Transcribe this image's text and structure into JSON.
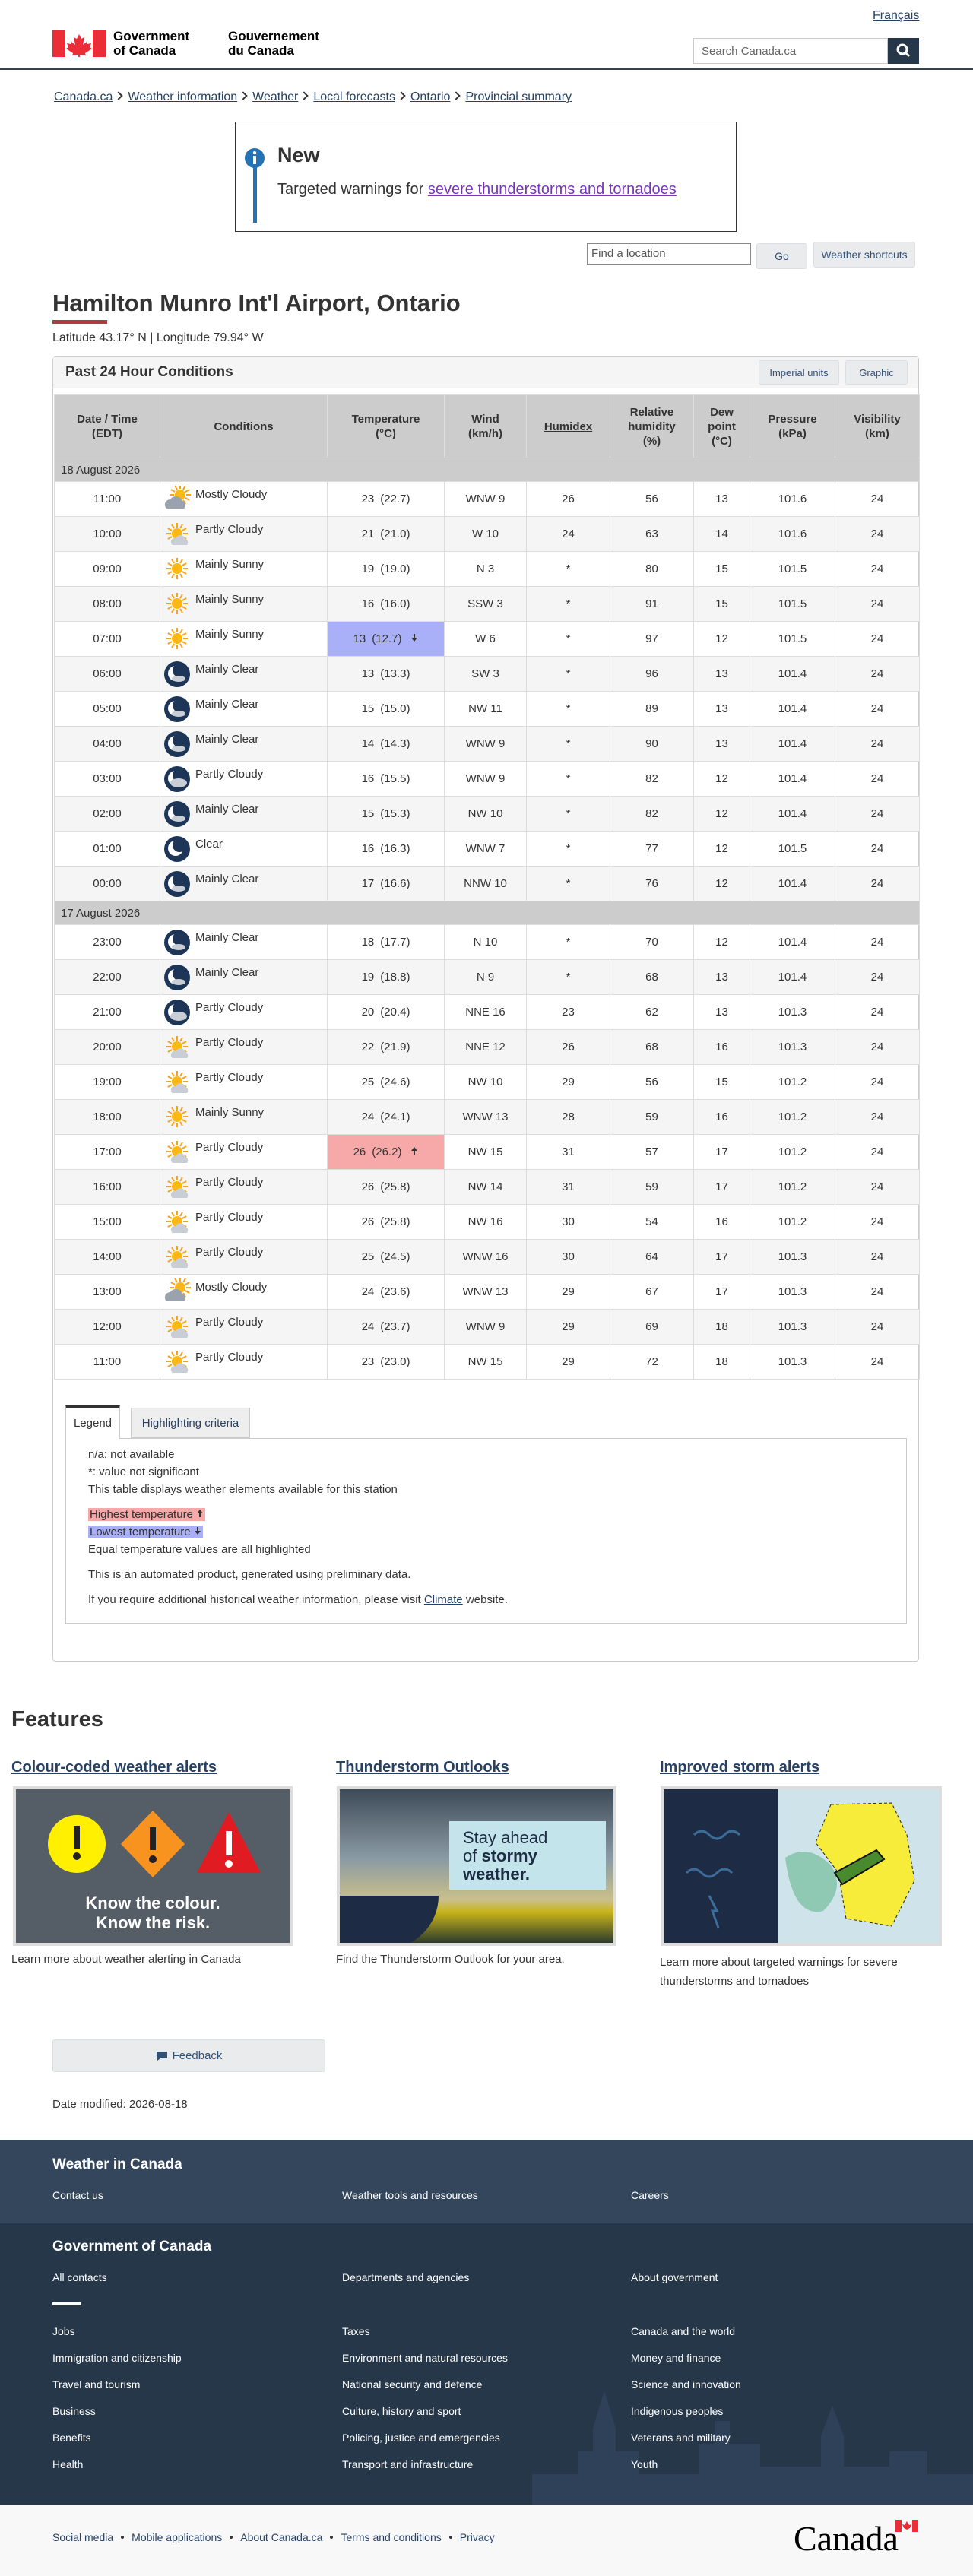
{
  "header": {
    "lang_toggle": "Français",
    "gov_en": [
      "Government",
      "of Canada"
    ],
    "gov_fr": [
      "Gouvernement",
      "du Canada"
    ],
    "search_placeholder": "Search Canada.ca"
  },
  "breadcrumb": [
    "Canada.ca",
    "Weather information",
    "Weather",
    "Local forecasts",
    "Ontario",
    "Provincial summary"
  ],
  "alert": {
    "title": "New",
    "text": "Targeted warnings for",
    "link": "severe thunderstorms and tornadoes"
  },
  "location_search": {
    "placeholder": "Find a location",
    "go": "Go",
    "shortcuts": "Weather shortcuts"
  },
  "station": {
    "title": "Hamilton Munro Int'l Airport, Ontario",
    "coordinates": "Latitude 43.17° N | Longitude 79.94° W"
  },
  "panel": {
    "title": "Past 24 Hour Conditions",
    "buttons": [
      "Imperial units",
      "Graphic"
    ]
  },
  "table": {
    "columns": [
      [
        "Date / Time",
        "(EDT)"
      ],
      [
        "Conditions"
      ],
      [
        "Temperature",
        "(°C)"
      ],
      [
        "Wind",
        "(km/h)"
      ],
      [
        "Humidex"
      ],
      [
        "Relative",
        "humidity",
        "(%)"
      ],
      [
        "Dew",
        "point",
        "(°C)"
      ],
      [
        "Pressure",
        "(kPa)"
      ],
      [
        "Visibility",
        "(km)"
      ]
    ],
    "groups": [
      {
        "date": "18 August 2026",
        "rows": [
          {
            "cells": [
              "11:00",
              "Mostly Cloudy",
              "23",
              "(22.7)",
              "WNW 9",
              "26",
              "56",
              "13",
              "101.6",
              "24"
            ]
          },
          {
            "cells": [
              "10:00",
              "Partly Cloudy",
              "21",
              "(21.0)",
              "W 10",
              "24",
              "63",
              "14",
              "101.6",
              "24"
            ]
          },
          {
            "cells": [
              "09:00",
              "Mainly Sunny",
              "19",
              "(19.0)",
              "N 3",
              "*",
              "80",
              "15",
              "101.5",
              "24"
            ]
          },
          {
            "cells": [
              "08:00",
              "Mainly Sunny",
              "16",
              "(16.0)",
              "SSW 3",
              "*",
              "91",
              "15",
              "101.5",
              "24"
            ]
          },
          {
            "cells": [
              "07:00",
              "Mainly Sunny",
              "13",
              "(12.7)",
              "W 6",
              "*",
              "97",
              "12",
              "101.5",
              "24"
            ],
            "highlight": "low"
          },
          {
            "cells": [
              "06:00",
              "Mainly Clear",
              "13",
              "(13.3)",
              "SW 3",
              "*",
              "96",
              "13",
              "101.4",
              "24"
            ]
          },
          {
            "cells": [
              "05:00",
              "Mainly Clear",
              "15",
              "(15.0)",
              "NW 11",
              "*",
              "89",
              "13",
              "101.4",
              "24"
            ]
          },
          {
            "cells": [
              "04:00",
              "Mainly Clear",
              "14",
              "(14.3)",
              "WNW 9",
              "*",
              "90",
              "13",
              "101.4",
              "24"
            ]
          },
          {
            "cells": [
              "03:00",
              "Partly Cloudy",
              "16",
              "(15.5)",
              "WNW 9",
              "*",
              "82",
              "12",
              "101.4",
              "24"
            ]
          },
          {
            "cells": [
              "02:00",
              "Mainly Clear",
              "15",
              "(15.3)",
              "NW 10",
              "*",
              "82",
              "12",
              "101.4",
              "24"
            ]
          },
          {
            "cells": [
              "01:00",
              "Clear",
              "16",
              "(16.3)",
              "WNW 7",
              "*",
              "77",
              "12",
              "101.5",
              "24"
            ]
          },
          {
            "cells": [
              "00:00",
              "Mainly Clear",
              "17",
              "(16.6)",
              "NNW 10",
              "*",
              "76",
              "12",
              "101.4",
              "24"
            ]
          }
        ]
      },
      {
        "date": "17 August 2026",
        "rows": [
          {
            "cells": [
              "23:00",
              "Mainly Clear",
              "18",
              "(17.7)",
              "N 10",
              "*",
              "70",
              "12",
              "101.4",
              "24"
            ]
          },
          {
            "cells": [
              "22:00",
              "Mainly Clear",
              "19",
              "(18.8)",
              "N 9",
              "*",
              "68",
              "13",
              "101.4",
              "24"
            ]
          },
          {
            "cells": [
              "21:00",
              "Partly Cloudy",
              "20",
              "(20.4)",
              "NNE 16",
              "23",
              "62",
              "13",
              "101.3",
              "24"
            ]
          },
          {
            "cells": [
              "20:00",
              "Partly Cloudy",
              "22",
              "(21.9)",
              "NNE 12",
              "26",
              "68",
              "16",
              "101.3",
              "24"
            ]
          },
          {
            "cells": [
              "19:00",
              "Partly Cloudy",
              "25",
              "(24.6)",
              "NW 10",
              "29",
              "56",
              "15",
              "101.2",
              "24"
            ]
          },
          {
            "cells": [
              "18:00",
              "Mainly Sunny",
              "24",
              "(24.1)",
              "WNW 13",
              "28",
              "59",
              "16",
              "101.2",
              "24"
            ]
          },
          {
            "cells": [
              "17:00",
              "Partly Cloudy",
              "26",
              "(26.2)",
              "NW 15",
              "31",
              "57",
              "17",
              "101.2",
              "24"
            ],
            "highlight": "high"
          },
          {
            "cells": [
              "16:00",
              "Partly Cloudy",
              "26",
              "(25.8)",
              "NW 14",
              "31",
              "59",
              "17",
              "101.2",
              "24"
            ]
          },
          {
            "cells": [
              "15:00",
              "Partly Cloudy",
              "26",
              "(25.8)",
              "NW 16",
              "30",
              "54",
              "16",
              "101.2",
              "24"
            ]
          },
          {
            "cells": [
              "14:00",
              "Partly Cloudy",
              "25",
              "(24.5)",
              "WNW 16",
              "30",
              "64",
              "17",
              "101.3",
              "24"
            ]
          },
          {
            "cells": [
              "13:00",
              "Mostly Cloudy",
              "24",
              "(23.6)",
              "WNW 13",
              "29",
              "67",
              "17",
              "101.3",
              "24"
            ]
          },
          {
            "cells": [
              "12:00",
              "Partly Cloudy",
              "24",
              "(23.7)",
              "WNW 9",
              "29",
              "69",
              "18",
              "101.3",
              "24"
            ]
          },
          {
            "cells": [
              "11:00",
              "Partly Cloudy",
              "23",
              "(23.0)",
              "NW 15",
              "29",
              "72",
              "18",
              "101.3",
              "24"
            ]
          }
        ]
      }
    ]
  },
  "legend": {
    "tabs": [
      "Legend",
      "Highlighting criteria"
    ],
    "na": "n/a: not available",
    "star": "*: value not significant",
    "station": "This table displays weather elements available for this station",
    "highest": "Highest temperature",
    "lowest": "Lowest temperature",
    "equal": "Equal temperature values are all highlighted",
    "automated": "This is an automated product, generated using preliminary data.",
    "climate_before": "If you require additional historical weather information, please visit",
    "climate_link": "Climate",
    "climate_after": "website."
  },
  "features": {
    "heading": "Features",
    "items": [
      {
        "title": "Colour-coded weather alerts",
        "image_text": [
          "Know the colour.",
          "Know the risk."
        ],
        "caption": "Learn more about weather alerting in Canada"
      },
      {
        "title": "Thunderstorm Outlooks",
        "image_text": [
          "Stay ahead",
          "of",
          "stormy",
          "weather."
        ],
        "caption": "Find the Thunderstorm Outlook for your area."
      },
      {
        "title": "Improved storm alerts",
        "caption": "Learn more about targeted warnings for severe thunderstorms and tornadoes"
      }
    ]
  },
  "feedback": "Feedback",
  "date_modified": {
    "label": "Date modified:",
    "value": "2026-08-18"
  },
  "footer": {
    "weather_title": "Weather in Canada",
    "weather_links": [
      "Contact us",
      "Weather tools and resources",
      "Careers"
    ],
    "gov_title": "Government of Canada",
    "gov_links": [
      "All contacts",
      "Departments and agencies",
      "About government"
    ],
    "themes": [
      "Jobs",
      "Taxes",
      "Canada and the world",
      "Immigration and citizenship",
      "Environment and natural resources",
      "Money and finance",
      "Travel and tourism",
      "National security and defence",
      "Science and innovation",
      "Business",
      "Culture, history and sport",
      "Indigenous peoples",
      "Benefits",
      "Policing, justice and emergencies",
      "Veterans and military",
      "Health",
      "Transport and infrastructure",
      "Youth"
    ],
    "bottom_links": [
      "Social media",
      "Mobile applications",
      "About Canada.ca",
      "Terms and conditions",
      "Privacy"
    ],
    "wordmark": "Canada"
  }
}
